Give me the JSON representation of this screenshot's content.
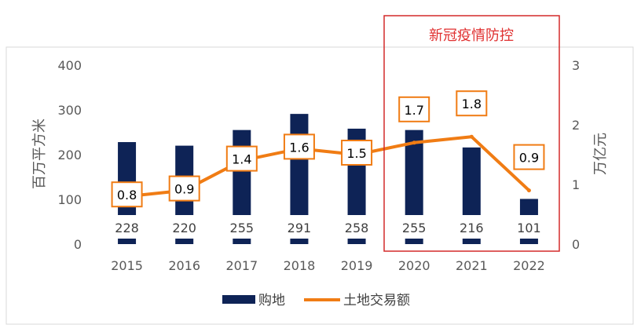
{
  "chart_data": {
    "type": "bar",
    "categories": [
      "2015",
      "2016",
      "2017",
      "2018",
      "2019",
      "2020",
      "2021",
      "2022"
    ],
    "series": [
      {
        "name": "购地",
        "type": "bar",
        "axis": "left",
        "values": [
          228,
          220,
          255,
          291,
          258,
          255,
          216,
          101
        ],
        "labels": [
          "228",
          "220",
          "255",
          "291",
          "258",
          "255",
          "216",
          "101"
        ],
        "color": "#0e2356"
      },
      {
        "name": "土地交易额",
        "type": "line",
        "axis": "right",
        "values": [
          0.8,
          0.9,
          1.4,
          1.6,
          1.5,
          1.7,
          1.8,
          0.9
        ],
        "labels": [
          "0.8",
          "0.9",
          "1.4",
          "1.6",
          "1.5",
          "1.7",
          "1.8",
          "0.9"
        ],
        "color": "#f07c14"
      }
    ],
    "ylabel": "百万平方米",
    "y2label": "万亿元",
    "ylim": [
      0,
      400
    ],
    "y2lim": [
      0,
      3
    ],
    "yticks": [
      "0",
      "100",
      "200",
      "300",
      "400"
    ],
    "y2ticks": [
      "0",
      "1",
      "2",
      "3"
    ],
    "grid": false,
    "legend": "bottom",
    "annotation": {
      "text": "新冠疫情防控",
      "range": [
        "2020",
        "2022"
      ],
      "color": "#d42a2a"
    }
  }
}
